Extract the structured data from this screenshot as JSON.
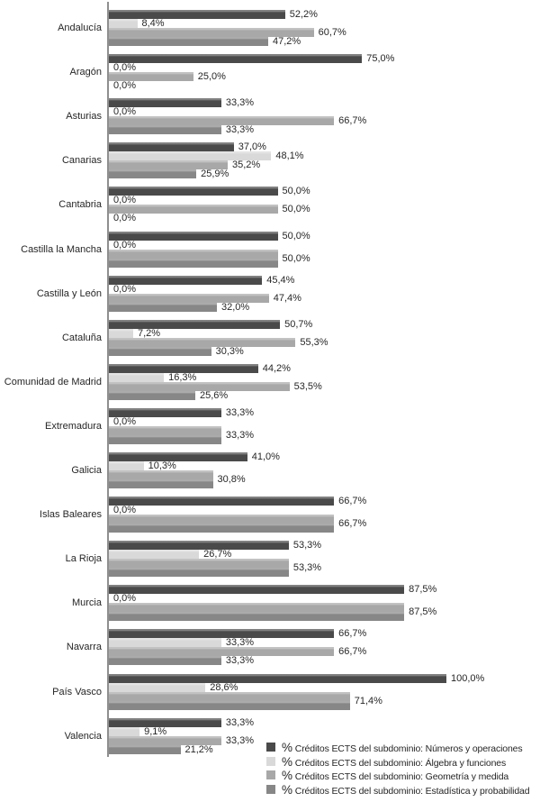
{
  "chart_data": {
    "type": "bar",
    "orientation": "horizontal",
    "title": "",
    "xlabel": "",
    "ylabel": "",
    "xlim": [
      0,
      100
    ],
    "grid": false,
    "legend_position": "bottom-right",
    "value_format": "decimal-comma-percent",
    "series": [
      {
        "name": "Números y operaciones",
        "legend_label": "Créditos ECTS del subdominio: Números y operaciones",
        "color": "#4a4a4a"
      },
      {
        "name": "Álgebra y funciones",
        "legend_label": "Créditos ECTS del subdominio: Álgebra y funciones",
        "color": "#d9d9d9"
      },
      {
        "name": "Geometría y medida",
        "legend_label": "Créditos ECTS del subdominio: Geometría y medida",
        "color": "#a8a8a8"
      },
      {
        "name": "Estadística y probabilidad",
        "legend_label": "Créditos ECTS del subdominio: Estadística y probabilidad",
        "color": "#878787"
      }
    ],
    "legend_prefix": "%",
    "categories": [
      "Andalucía",
      "Aragón",
      "Asturias",
      "Canarias",
      "Cantabria",
      "Castilla la Mancha",
      "Castilla y León",
      "Cataluña",
      "Comunidad de Madrid",
      "Extremadura",
      "Galicia",
      "Islas Baleares",
      "La Rioja",
      "Murcia",
      "Navarra",
      "País Vasco",
      "Valencia"
    ],
    "rows": [
      {
        "region": "Andalucía",
        "values": [
          52.2,
          8.4,
          60.7,
          47.2
        ],
        "labels": [
          "52,2%",
          "8,4%",
          "60,7%",
          "47,2%"
        ],
        "shared_label": false
      },
      {
        "region": "Aragón",
        "values": [
          75.0,
          0.0,
          25.0,
          0.0
        ],
        "labels": [
          "75,0%",
          "0,0%",
          "25,0%",
          "0,0%"
        ],
        "shared_label": false
      },
      {
        "region": "Asturias",
        "values": [
          33.3,
          0.0,
          66.7,
          33.3
        ],
        "labels": [
          "33,3%",
          "0,0%",
          "66,7%",
          "33,3%"
        ],
        "shared_label": false
      },
      {
        "region": "Canarias",
        "values": [
          37.0,
          48.1,
          35.2,
          25.9
        ],
        "labels": [
          "37,0%",
          "48,1%",
          "35,2%",
          "25,9%"
        ],
        "shared_label": false
      },
      {
        "region": "Cantabria",
        "values": [
          50.0,
          0.0,
          50.0,
          0.0
        ],
        "labels": [
          "50,0%",
          "0,0%",
          "50,0%",
          "0,0%"
        ],
        "shared_label": false
      },
      {
        "region": "Castilla la Mancha",
        "values": [
          50.0,
          0.0,
          50.0,
          50.0
        ],
        "labels": [
          "50,0%",
          "0,0%",
          "",
          "50,0%"
        ],
        "shared_label": true
      },
      {
        "region": "Castilla y León",
        "values": [
          45.4,
          0.0,
          47.4,
          32.0
        ],
        "labels": [
          "45,4%",
          "0,0%",
          "47,4%",
          "32,0%"
        ],
        "shared_label": false
      },
      {
        "region": "Cataluña",
        "values": [
          50.7,
          7.2,
          55.3,
          30.3
        ],
        "labels": [
          "50,7%",
          "7,2%",
          "55,3%",
          "30,3%"
        ],
        "shared_label": false
      },
      {
        "region": "Comunidad de Madrid",
        "values": [
          44.2,
          16.3,
          53.5,
          25.6
        ],
        "labels": [
          "44,2%",
          "16,3%",
          "53,5%",
          "25,6%"
        ],
        "shared_label": false
      },
      {
        "region": "Extremadura",
        "values": [
          33.3,
          0.0,
          33.3,
          33.3
        ],
        "labels": [
          "33,3%",
          "0,0%",
          "",
          "33,3%"
        ],
        "shared_label": true
      },
      {
        "region": "Galicia",
        "values": [
          41.0,
          10.3,
          30.8,
          30.8
        ],
        "labels": [
          "41,0%",
          "10,3%",
          "",
          "30,8%"
        ],
        "shared_label": true
      },
      {
        "region": "Islas Baleares",
        "values": [
          66.7,
          0.0,
          66.7,
          66.7
        ],
        "labels": [
          "66,7%",
          "0,0%",
          "",
          "66,7%"
        ],
        "shared_label": true
      },
      {
        "region": "La Rioja",
        "values": [
          53.3,
          26.7,
          53.3,
          53.3
        ],
        "labels": [
          "53,3%",
          "26,7%",
          "",
          "53,3%"
        ],
        "shared_label": true
      },
      {
        "region": "Murcia",
        "values": [
          87.5,
          0.0,
          87.5,
          87.5
        ],
        "labels": [
          "87,5%",
          "0,0%",
          "",
          "87,5%"
        ],
        "shared_label": true
      },
      {
        "region": "Navarra",
        "values": [
          66.7,
          33.3,
          66.7,
          33.3
        ],
        "labels": [
          "66,7%",
          "33,3%",
          "66,7%",
          "33,3%"
        ],
        "shared_label": false
      },
      {
        "region": "País Vasco",
        "values": [
          100.0,
          28.6,
          71.4,
          71.4
        ],
        "labels": [
          "100,0%",
          "28,6%",
          "",
          "71,4%"
        ],
        "shared_label": true
      },
      {
        "region": "Valencia",
        "values": [
          33.3,
          9.1,
          33.3,
          21.2
        ],
        "labels": [
          "33,3%",
          "9,1%",
          "33,3%",
          "21,2%"
        ],
        "shared_label": false
      }
    ],
    "colors": {
      "axis": "#8f8f8f",
      "text": "#262626",
      "background": "#ffffff"
    }
  }
}
